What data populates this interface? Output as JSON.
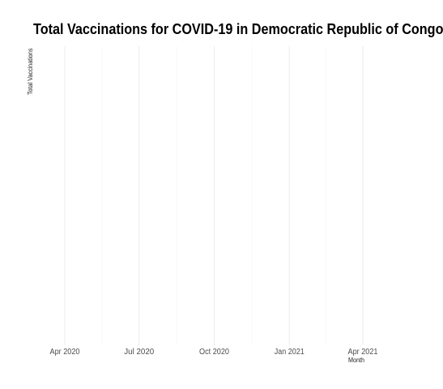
{
  "chart_data": {
    "type": "line",
    "title": "Total Vaccinations for COVID-19 in Democratic Republic of Congo",
    "xlabel": "Month",
    "ylabel": "Total Vaccinations",
    "x_tick_labels": [
      "Apr 2020",
      "Jul 2020",
      "Oct 2020",
      "Jan 2021",
      "Apr 2021"
    ],
    "x_ticks": [
      "2020-04-01",
      "2020-07-01",
      "2020-10-01",
      "2021-01-01",
      "2021-04-01"
    ],
    "x_range": [
      "2020-02-14",
      "2021-05-01"
    ],
    "series": [],
    "grid": "vertical",
    "legend": "none",
    "colors": {
      "grid_major": "#ebebeb",
      "grid_minor": "#f4f4f4",
      "background": "#ffffff",
      "text": "#000000",
      "tick_text": "#4d4d4d"
    }
  }
}
